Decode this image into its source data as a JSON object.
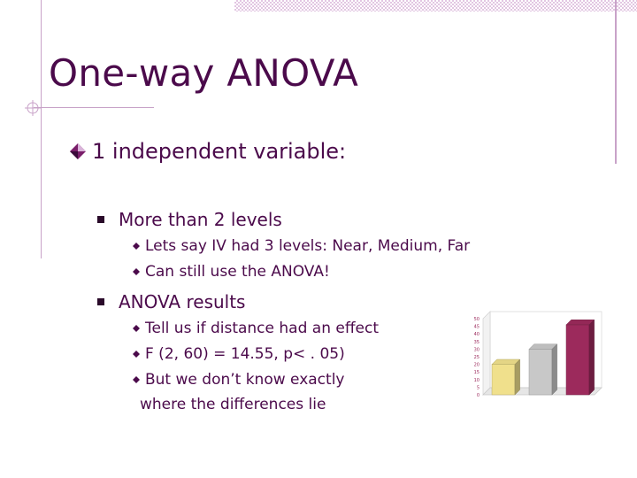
{
  "title": "One-way ANOVA",
  "bullet1": "1 independent variable:",
  "sub1": "More than 2 levels",
  "sub1_items": [
    "Lets say IV had 3 levels: Near, Medium, Far",
    "Can still use the ANOVA!"
  ],
  "sub2": "ANOVA results",
  "sub2_items": [
    "Tell us if distance had an effect",
    "F (2, 60) = 14.55, p< . 05)",
    "But we don’t know exactly"
  ],
  "sub2_continuation": "where the differences lie",
  "colors": {
    "title": "#4b0a4b",
    "frame": "#c8a2c8",
    "bar1": "#f0e08c",
    "bar2": "#c8c8c8",
    "bar3": "#9c2a5c"
  },
  "chart_data": {
    "type": "bar",
    "categories": [
      "",
      "",
      ""
    ],
    "values": [
      20,
      30,
      46
    ],
    "ylim": [
      0,
      50
    ],
    "yticks": [
      "50",
      "45",
      "40",
      "35",
      "30",
      "25",
      "20",
      "15",
      "10",
      "5",
      "0"
    ],
    "grid": false,
    "style": "3d"
  }
}
